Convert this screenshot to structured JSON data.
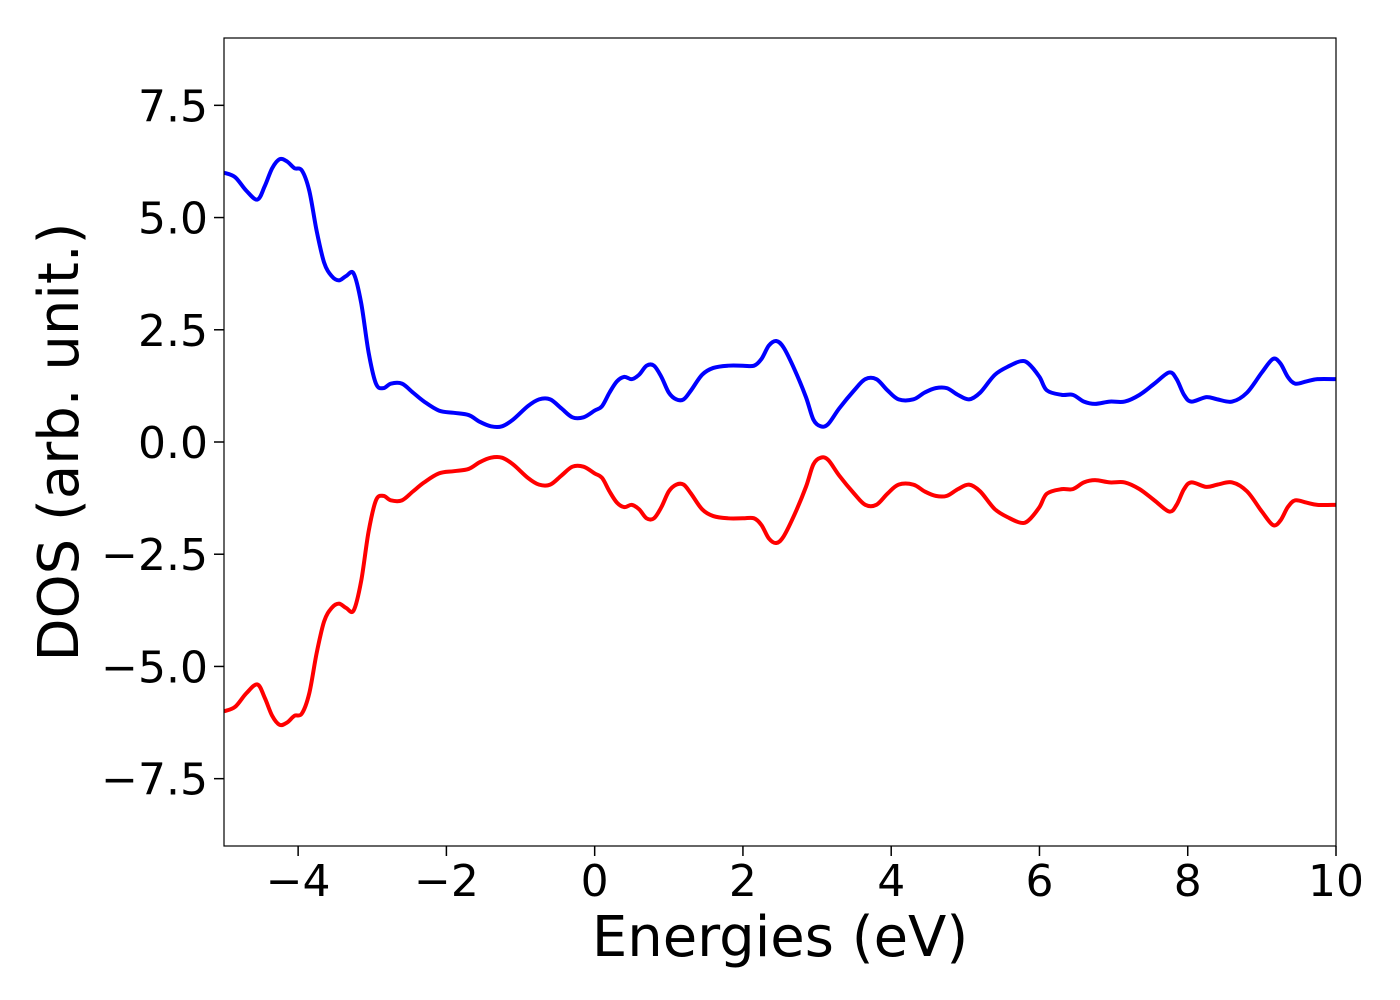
{
  "chart_data": {
    "type": "line",
    "title": "",
    "xlabel": "Energies (eV)",
    "ylabel": "DOS (arb. unit.)",
    "xlim": [
      -5,
      10
    ],
    "ylim": [
      -9,
      9
    ],
    "grid": false,
    "legend": "none",
    "xticks": [
      -4,
      -2,
      0,
      2,
      4,
      6,
      8,
      10
    ],
    "xtick_labels": [
      "−4",
      "−2",
      "0",
      "2",
      "4",
      "6",
      "8",
      "10"
    ],
    "yticks": [
      7.5,
      5.0,
      2.5,
      0.0,
      -2.5,
      -5.0,
      -7.5
    ],
    "ytick_labels": [
      "7.5",
      "5.0",
      "2.5",
      "0.0",
      "−2.5",
      "−5.0",
      "−7.5"
    ],
    "series": [
      {
        "color": "#0000ff",
        "points": [
          [
            -5.0,
            6.0
          ],
          [
            -4.85,
            5.9
          ],
          [
            -4.7,
            5.6
          ],
          [
            -4.55,
            5.4
          ],
          [
            -4.45,
            5.7
          ],
          [
            -4.35,
            6.1
          ],
          [
            -4.25,
            6.3
          ],
          [
            -4.15,
            6.25
          ],
          [
            -4.05,
            6.1
          ],
          [
            -3.95,
            6.05
          ],
          [
            -3.85,
            5.6
          ],
          [
            -3.75,
            4.7
          ],
          [
            -3.65,
            4.0
          ],
          [
            -3.55,
            3.7
          ],
          [
            -3.45,
            3.6
          ],
          [
            -3.35,
            3.7
          ],
          [
            -3.25,
            3.75
          ],
          [
            -3.15,
            3.1
          ],
          [
            -3.05,
            2.0
          ],
          [
            -2.95,
            1.3
          ],
          [
            -2.85,
            1.2
          ],
          [
            -2.75,
            1.3
          ],
          [
            -2.6,
            1.3
          ],
          [
            -2.45,
            1.1
          ],
          [
            -2.3,
            0.9
          ],
          [
            -2.1,
            0.7
          ],
          [
            -1.9,
            0.65
          ],
          [
            -1.7,
            0.6
          ],
          [
            -1.55,
            0.45
          ],
          [
            -1.4,
            0.35
          ],
          [
            -1.25,
            0.35
          ],
          [
            -1.1,
            0.5
          ],
          [
            -0.9,
            0.8
          ],
          [
            -0.75,
            0.95
          ],
          [
            -0.6,
            0.95
          ],
          [
            -0.45,
            0.75
          ],
          [
            -0.3,
            0.55
          ],
          [
            -0.15,
            0.55
          ],
          [
            0.0,
            0.7
          ],
          [
            0.1,
            0.8
          ],
          [
            0.2,
            1.1
          ],
          [
            0.3,
            1.35
          ],
          [
            0.4,
            1.45
          ],
          [
            0.5,
            1.4
          ],
          [
            0.6,
            1.5
          ],
          [
            0.7,
            1.7
          ],
          [
            0.8,
            1.7
          ],
          [
            0.9,
            1.45
          ],
          [
            1.0,
            1.1
          ],
          [
            1.1,
            0.95
          ],
          [
            1.2,
            0.95
          ],
          [
            1.3,
            1.15
          ],
          [
            1.45,
            1.5
          ],
          [
            1.6,
            1.65
          ],
          [
            1.8,
            1.7
          ],
          [
            2.0,
            1.7
          ],
          [
            2.15,
            1.7
          ],
          [
            2.25,
            1.85
          ],
          [
            2.35,
            2.15
          ],
          [
            2.45,
            2.25
          ],
          [
            2.55,
            2.1
          ],
          [
            2.7,
            1.6
          ],
          [
            2.85,
            1.0
          ],
          [
            2.95,
            0.5
          ],
          [
            3.05,
            0.35
          ],
          [
            3.15,
            0.4
          ],
          [
            3.3,
            0.75
          ],
          [
            3.5,
            1.15
          ],
          [
            3.65,
            1.4
          ],
          [
            3.8,
            1.4
          ],
          [
            3.95,
            1.15
          ],
          [
            4.1,
            0.95
          ],
          [
            4.3,
            0.95
          ],
          [
            4.45,
            1.1
          ],
          [
            4.6,
            1.2
          ],
          [
            4.75,
            1.2
          ],
          [
            4.9,
            1.05
          ],
          [
            5.05,
            0.95
          ],
          [
            5.2,
            1.1
          ],
          [
            5.4,
            1.5
          ],
          [
            5.6,
            1.7
          ],
          [
            5.75,
            1.8
          ],
          [
            5.85,
            1.75
          ],
          [
            6.0,
            1.45
          ],
          [
            6.1,
            1.15
          ],
          [
            6.3,
            1.05
          ],
          [
            6.45,
            1.05
          ],
          [
            6.6,
            0.9
          ],
          [
            6.75,
            0.85
          ],
          [
            6.95,
            0.9
          ],
          [
            7.15,
            0.9
          ],
          [
            7.35,
            1.05
          ],
          [
            7.55,
            1.3
          ],
          [
            7.75,
            1.55
          ],
          [
            7.85,
            1.4
          ],
          [
            7.95,
            1.05
          ],
          [
            8.05,
            0.9
          ],
          [
            8.25,
            1.0
          ],
          [
            8.4,
            0.95
          ],
          [
            8.6,
            0.9
          ],
          [
            8.8,
            1.1
          ],
          [
            9.0,
            1.55
          ],
          [
            9.15,
            1.85
          ],
          [
            9.25,
            1.75
          ],
          [
            9.35,
            1.45
          ],
          [
            9.45,
            1.3
          ],
          [
            9.6,
            1.35
          ],
          [
            9.75,
            1.4
          ],
          [
            10.0,
            1.4
          ]
        ]
      },
      {
        "color": "#ff0000",
        "points": [
          [
            -5.0,
            -6.0
          ],
          [
            -4.85,
            -5.9
          ],
          [
            -4.7,
            -5.6
          ],
          [
            -4.55,
            -5.4
          ],
          [
            -4.45,
            -5.7
          ],
          [
            -4.35,
            -6.1
          ],
          [
            -4.25,
            -6.3
          ],
          [
            -4.15,
            -6.25
          ],
          [
            -4.05,
            -6.1
          ],
          [
            -3.95,
            -6.05
          ],
          [
            -3.85,
            -5.6
          ],
          [
            -3.75,
            -4.7
          ],
          [
            -3.65,
            -4.0
          ],
          [
            -3.55,
            -3.7
          ],
          [
            -3.45,
            -3.6
          ],
          [
            -3.35,
            -3.7
          ],
          [
            -3.25,
            -3.75
          ],
          [
            -3.15,
            -3.1
          ],
          [
            -3.05,
            -2.0
          ],
          [
            -2.95,
            -1.3
          ],
          [
            -2.85,
            -1.2
          ],
          [
            -2.75,
            -1.3
          ],
          [
            -2.6,
            -1.3
          ],
          [
            -2.45,
            -1.1
          ],
          [
            -2.3,
            -0.9
          ],
          [
            -2.1,
            -0.7
          ],
          [
            -1.9,
            -0.65
          ],
          [
            -1.7,
            -0.6
          ],
          [
            -1.55,
            -0.45
          ],
          [
            -1.4,
            -0.35
          ],
          [
            -1.25,
            -0.35
          ],
          [
            -1.1,
            -0.5
          ],
          [
            -0.9,
            -0.8
          ],
          [
            -0.75,
            -0.95
          ],
          [
            -0.6,
            -0.95
          ],
          [
            -0.45,
            -0.75
          ],
          [
            -0.3,
            -0.55
          ],
          [
            -0.15,
            -0.55
          ],
          [
            0.0,
            -0.7
          ],
          [
            0.1,
            -0.8
          ],
          [
            0.2,
            -1.1
          ],
          [
            0.3,
            -1.35
          ],
          [
            0.4,
            -1.45
          ],
          [
            0.5,
            -1.4
          ],
          [
            0.6,
            -1.5
          ],
          [
            0.7,
            -1.7
          ],
          [
            0.8,
            -1.7
          ],
          [
            0.9,
            -1.45
          ],
          [
            1.0,
            -1.1
          ],
          [
            1.1,
            -0.95
          ],
          [
            1.2,
            -0.95
          ],
          [
            1.3,
            -1.15
          ],
          [
            1.45,
            -1.5
          ],
          [
            1.6,
            -1.65
          ],
          [
            1.8,
            -1.7
          ],
          [
            2.0,
            -1.7
          ],
          [
            2.15,
            -1.7
          ],
          [
            2.25,
            -1.85
          ],
          [
            2.35,
            -2.15
          ],
          [
            2.45,
            -2.25
          ],
          [
            2.55,
            -2.1
          ],
          [
            2.7,
            -1.6
          ],
          [
            2.85,
            -1.0
          ],
          [
            2.95,
            -0.5
          ],
          [
            3.05,
            -0.35
          ],
          [
            3.15,
            -0.4
          ],
          [
            3.3,
            -0.75
          ],
          [
            3.5,
            -1.15
          ],
          [
            3.65,
            -1.4
          ],
          [
            3.8,
            -1.4
          ],
          [
            3.95,
            -1.15
          ],
          [
            4.1,
            -0.95
          ],
          [
            4.3,
            -0.95
          ],
          [
            4.45,
            -1.1
          ],
          [
            4.6,
            -1.2
          ],
          [
            4.75,
            -1.2
          ],
          [
            4.9,
            -1.05
          ],
          [
            5.05,
            -0.95
          ],
          [
            5.2,
            -1.1
          ],
          [
            5.4,
            -1.5
          ],
          [
            5.6,
            -1.7
          ],
          [
            5.75,
            -1.8
          ],
          [
            5.85,
            -1.75
          ],
          [
            6.0,
            -1.45
          ],
          [
            6.1,
            -1.15
          ],
          [
            6.3,
            -1.05
          ],
          [
            6.45,
            -1.05
          ],
          [
            6.6,
            -0.9
          ],
          [
            6.75,
            -0.85
          ],
          [
            6.95,
            -0.9
          ],
          [
            7.15,
            -0.9
          ],
          [
            7.35,
            -1.05
          ],
          [
            7.55,
            -1.3
          ],
          [
            7.75,
            -1.55
          ],
          [
            7.85,
            -1.4
          ],
          [
            7.95,
            -1.05
          ],
          [
            8.05,
            -0.9
          ],
          [
            8.25,
            -1.0
          ],
          [
            8.4,
            -0.95
          ],
          [
            8.6,
            -0.9
          ],
          [
            8.8,
            -1.1
          ],
          [
            9.0,
            -1.55
          ],
          [
            9.15,
            -1.85
          ],
          [
            9.25,
            -1.75
          ],
          [
            9.35,
            -1.45
          ],
          [
            9.45,
            -1.3
          ],
          [
            9.6,
            -1.35
          ],
          [
            9.75,
            -1.4
          ],
          [
            10.0,
            -1.4
          ]
        ]
      }
    ]
  }
}
